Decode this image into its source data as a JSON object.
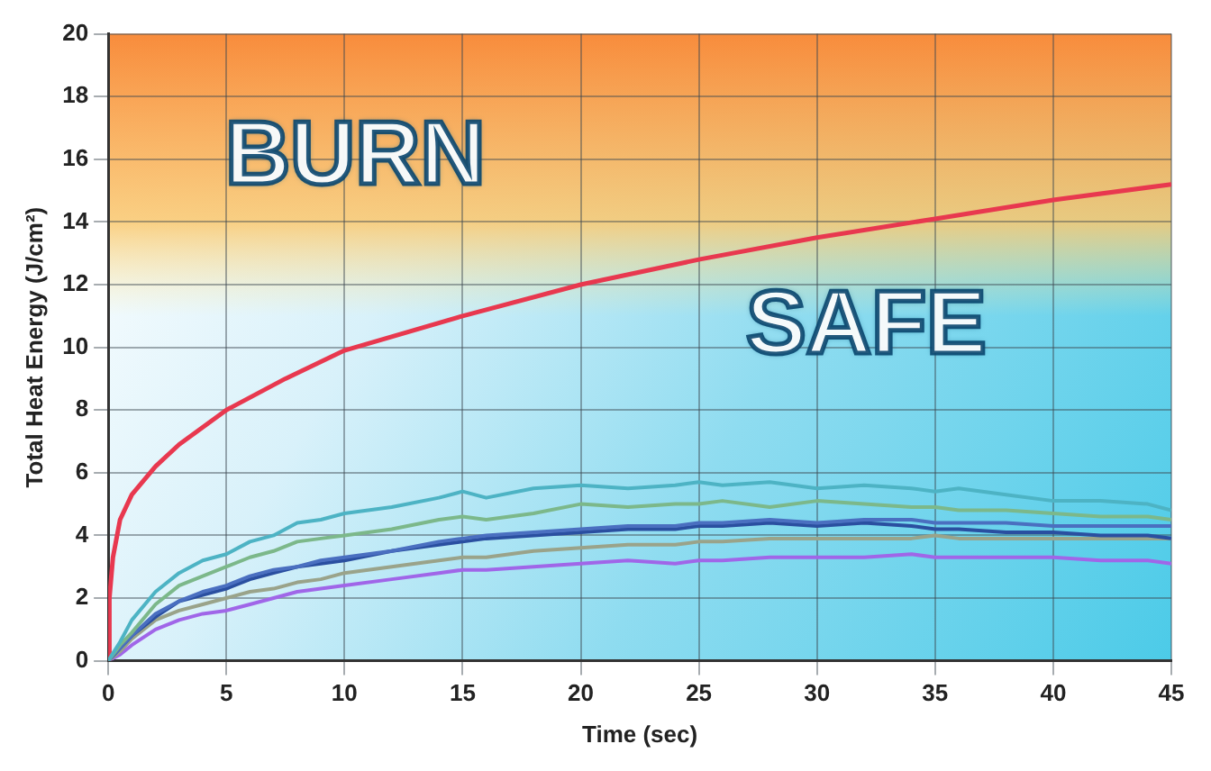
{
  "chart_data": {
    "type": "line",
    "xlabel": "Time (sec)",
    "ylabel": "Total Heat Energy (J/cm²)",
    "annotations": [
      "BURN",
      "SAFE"
    ],
    "x": [
      0,
      0.5,
      1,
      2,
      3,
      4,
      5,
      6,
      7,
      8,
      9,
      10,
      12,
      14,
      15,
      16,
      18,
      20,
      22,
      24,
      25,
      26,
      28,
      30,
      32,
      34,
      35,
      36,
      38,
      40,
      42,
      44,
      45
    ],
    "xlim": [
      0,
      45
    ],
    "xticks": [
      0,
      5,
      10,
      15,
      20,
      25,
      30,
      35,
      40,
      45
    ],
    "ylim": [
      0,
      20
    ],
    "yticks": [
      0,
      2,
      4,
      6,
      8,
      10,
      12,
      14,
      16,
      18,
      20
    ],
    "grid": true,
    "marker": "none",
    "line_style": "solid",
    "series": [
      {
        "color": "#e8384f",
        "x": [
          0,
          0.05,
          0.2,
          0.5,
          1,
          2,
          3,
          5,
          7.5,
          10,
          15,
          20,
          25,
          30,
          35,
          40,
          45
        ],
        "values": [
          0,
          2,
          3.3,
          4.5,
          5.3,
          6.2,
          6.9,
          8,
          9,
          9.9,
          11,
          12,
          12.8,
          13.5,
          14.1,
          14.7,
          15.2
        ]
      },
      {
        "color": "#4db3c4",
        "values": [
          0,
          0.6,
          1.3,
          2.2,
          2.8,
          3.2,
          3.4,
          3.8,
          4.0,
          4.4,
          4.5,
          4.7,
          4.9,
          5.2,
          5.4,
          5.2,
          5.5,
          5.6,
          5.5,
          5.6,
          5.7,
          5.6,
          5.7,
          5.5,
          5.6,
          5.5,
          5.4,
          5.5,
          5.3,
          5.1,
          5.1,
          5.0,
          4.8
        ]
      },
      {
        "color": "#7cb88a",
        "values": [
          0,
          0.5,
          0.9,
          1.8,
          2.4,
          2.7,
          3.0,
          3.3,
          3.5,
          3.8,
          3.9,
          4.0,
          4.2,
          4.5,
          4.6,
          4.5,
          4.7,
          5.0,
          4.9,
          5.0,
          5.0,
          5.1,
          4.9,
          5.1,
          5.0,
          4.9,
          4.9,
          4.8,
          4.8,
          4.7,
          4.6,
          4.6,
          4.5
        ]
      },
      {
        "color": "#4a6fc0",
        "values": [
          0,
          0.4,
          0.8,
          1.5,
          1.9,
          2.2,
          2.4,
          2.7,
          2.9,
          3.0,
          3.2,
          3.3,
          3.5,
          3.8,
          3.9,
          4.0,
          4.1,
          4.2,
          4.3,
          4.3,
          4.4,
          4.4,
          4.5,
          4.4,
          4.5,
          4.5,
          4.4,
          4.4,
          4.4,
          4.3,
          4.3,
          4.3,
          4.3
        ]
      },
      {
        "color": "#2a4fa0",
        "values": [
          0,
          0.4,
          0.8,
          1.4,
          1.9,
          2.1,
          2.3,
          2.6,
          2.8,
          3.0,
          3.1,
          3.2,
          3.5,
          3.7,
          3.8,
          3.9,
          4.0,
          4.1,
          4.2,
          4.2,
          4.3,
          4.3,
          4.4,
          4.3,
          4.4,
          4.3,
          4.2,
          4.2,
          4.1,
          4.1,
          4.0,
          4.0,
          3.9
        ]
      },
      {
        "color": "#9aa38a",
        "values": [
          0,
          0.3,
          0.7,
          1.3,
          1.6,
          1.8,
          2.0,
          2.2,
          2.3,
          2.5,
          2.6,
          2.8,
          3.0,
          3.2,
          3.3,
          3.3,
          3.5,
          3.6,
          3.7,
          3.7,
          3.8,
          3.8,
          3.9,
          3.9,
          3.9,
          3.9,
          4.0,
          3.9,
          3.9,
          3.9,
          3.9,
          3.9,
          3.9
        ]
      },
      {
        "color": "#a066e8",
        "values": [
          0,
          0.2,
          0.5,
          1.0,
          1.3,
          1.5,
          1.6,
          1.8,
          2.0,
          2.2,
          2.3,
          2.4,
          2.6,
          2.8,
          2.9,
          2.9,
          3.0,
          3.1,
          3.2,
          3.1,
          3.2,
          3.2,
          3.3,
          3.3,
          3.3,
          3.4,
          3.3,
          3.3,
          3.3,
          3.3,
          3.2,
          3.2,
          3.1
        ]
      }
    ]
  }
}
